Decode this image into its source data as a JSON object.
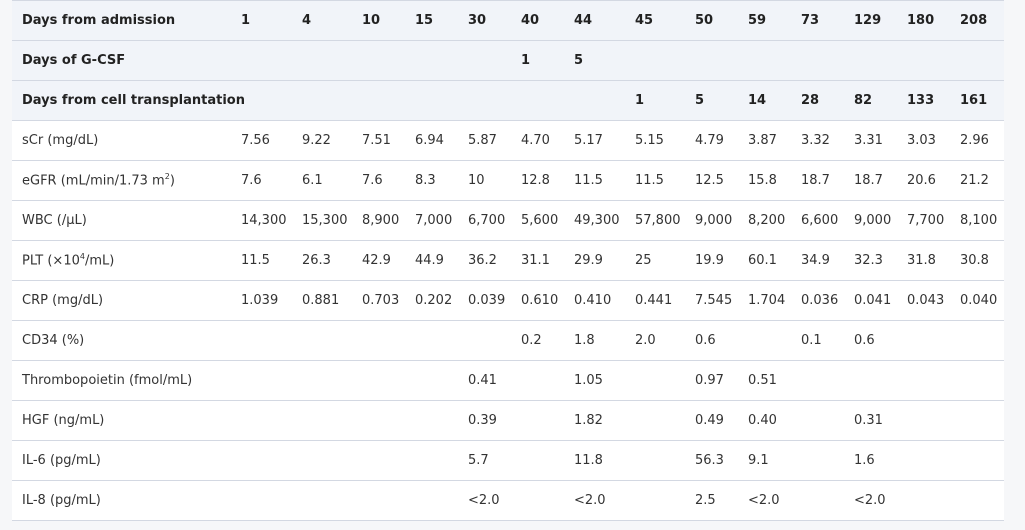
{
  "table": {
    "header_rows": [
      {
        "label": "Days from admission",
        "cells": [
          "1",
          "4",
          "10",
          "15",
          "30",
          "40",
          "44",
          "45",
          "50",
          "59",
          "73",
          "129",
          "180",
          "208"
        ]
      },
      {
        "label": "Days of G-CSF",
        "cells": [
          "",
          "",
          "",
          "",
          "",
          "1",
          "5",
          "",
          "",
          "",
          "",
          "",
          "",
          ""
        ]
      },
      {
        "label": "Days from cell transplantation",
        "cells": [
          "",
          "",
          "",
          "",
          "",
          "",
          "",
          "1",
          "5",
          "14",
          "28",
          "82",
          "133",
          "161"
        ]
      }
    ],
    "rows": [
      {
        "label": "sCr (mg/dL)",
        "cells": [
          "7.56",
          "9.22",
          "7.51",
          "6.94",
          "5.87",
          "4.70",
          "5.17",
          "5.15",
          "4.79",
          "3.87",
          "3.32",
          "3.31",
          "3.03",
          "2.96"
        ]
      },
      {
        "label": "eGFR (mL/min/1.73 m",
        "sup": "2",
        "label_suffix": ")",
        "cells": [
          "7.6",
          "6.1",
          "7.6",
          "8.3",
          "10",
          "12.8",
          "11.5",
          "11.5",
          "12.5",
          "15.8",
          "18.7",
          "18.7",
          "20.6",
          "21.2"
        ]
      },
      {
        "label": "WBC (/µL)",
        "cells": [
          "14,300",
          "15,300",
          "8,900",
          "7,000",
          "6,700",
          "5,600",
          "49,300",
          "57,800",
          "9,000",
          "8,200",
          "6,600",
          "9,000",
          "7,700",
          "8,100"
        ]
      },
      {
        "label": "PLT (×10",
        "sup": "4",
        "label_suffix": "/mL)",
        "cells": [
          "11.5",
          "26.3",
          "42.9",
          "44.9",
          "36.2",
          "31.1",
          "29.9",
          "25",
          "19.9",
          "60.1",
          "34.9",
          "32.3",
          "31.8",
          "30.8"
        ]
      },
      {
        "label": "CRP (mg/dL)",
        "cells": [
          "1.039",
          "0.881",
          "0.703",
          "0.202",
          "0.039",
          "0.610",
          "0.410",
          "0.441",
          "7.545",
          "1.704",
          "0.036",
          "0.041",
          "0.043",
          "0.040"
        ]
      },
      {
        "label": "CD34 (%)",
        "cells": [
          "",
          "",
          "",
          "",
          "",
          "0.2",
          "1.8",
          "2.0",
          "0.6",
          "",
          "0.1",
          "0.6",
          "",
          ""
        ]
      },
      {
        "label": "Thrombopoietin (fmol/mL)",
        "cells": [
          "",
          "",
          "",
          "",
          "0.41",
          "",
          "1.05",
          "",
          "0.97",
          "0.51",
          "",
          "",
          "",
          ""
        ]
      },
      {
        "label": "HGF (ng/mL)",
        "cells": [
          "",
          "",
          "",
          "",
          "0.39",
          "",
          "1.82",
          "",
          "0.49",
          "0.40",
          "",
          "0.31",
          "",
          ""
        ]
      },
      {
        "label": "IL-6 (pg/mL)",
        "cells": [
          "",
          "",
          "",
          "",
          "5.7",
          "",
          "11.8",
          "",
          "56.3",
          "9.1",
          "",
          "1.6",
          "",
          ""
        ]
      },
      {
        "label": "IL-8 (pg/mL)",
        "cells": [
          "",
          "",
          "",
          "",
          "<2.0",
          "",
          "<2.0",
          "",
          "2.5",
          "<2.0",
          "",
          "<2.0",
          "",
          ""
        ]
      }
    ]
  }
}
